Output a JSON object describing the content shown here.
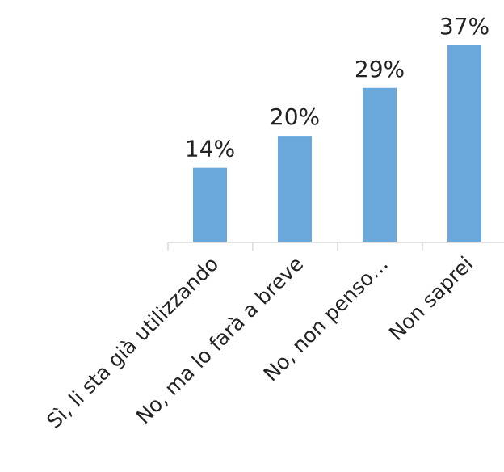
{
  "chart_data": {
    "type": "bar",
    "categories": [
      "Sì, li sta già utilizzando",
      "No, ma lo farà a breve",
      "No, non penso…",
      "Non saprei"
    ],
    "values": [
      14,
      20,
      29,
      37
    ],
    "data_labels": [
      "14%",
      "20%",
      "29%",
      "37%"
    ],
    "ylim": [
      0,
      37
    ],
    "grid": false,
    "legend": "none",
    "colors": {
      "bar": "#6aa7db",
      "axis": "#d9d9d9",
      "text": "#222222"
    }
  }
}
